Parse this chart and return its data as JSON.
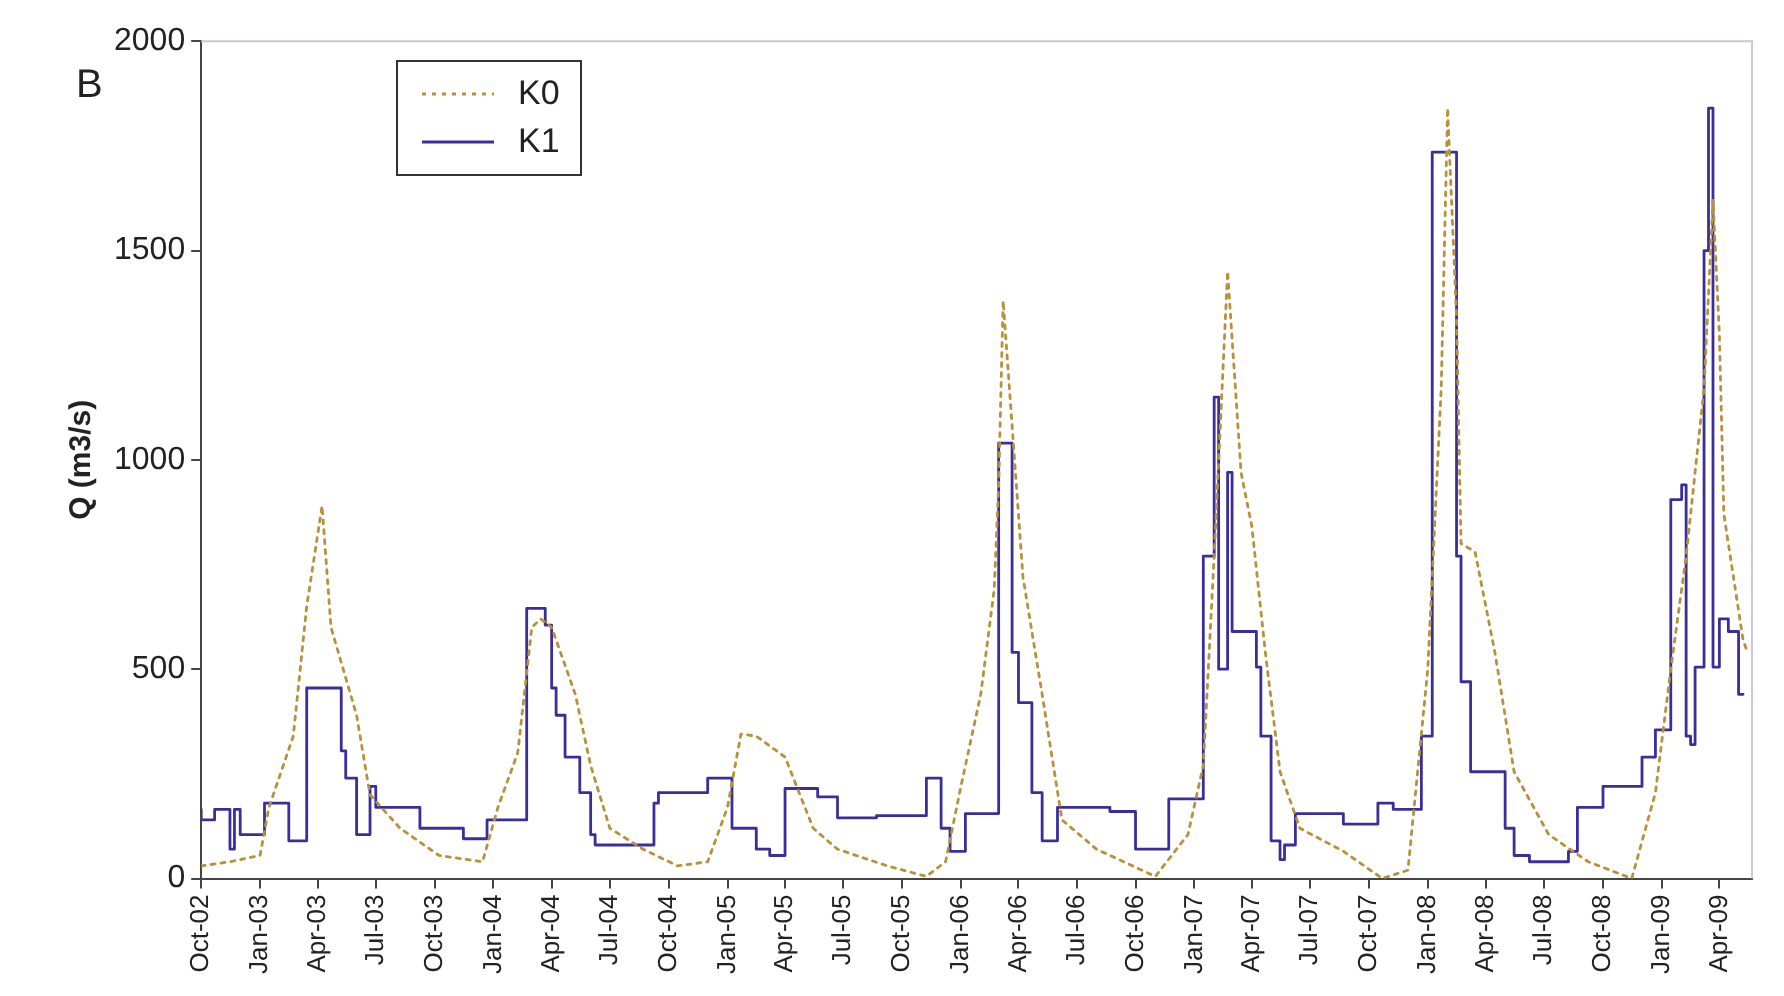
{
  "chart_data": {
    "type": "line",
    "ylabel": "Q (m3/s)",
    "annotations": [
      "B"
    ],
    "legend": "top left",
    "grid": false,
    "marker": "none",
    "xlim": [
      "2002-10-01",
      "2009-05-22"
    ],
    "xticks": [
      {
        "value": "2002-10-01",
        "label": "Oct-02"
      },
      {
        "value": "2003-01-01",
        "label": "Jan-03"
      },
      {
        "value": "2003-04-01",
        "label": "Apr-03"
      },
      {
        "value": "2003-07-01",
        "label": "Jul-03"
      },
      {
        "value": "2003-10-01",
        "label": "Oct-03"
      },
      {
        "value": "2004-01-01",
        "label": "Jan-04"
      },
      {
        "value": "2004-04-01",
        "label": "Apr-04"
      },
      {
        "value": "2004-07-01",
        "label": "Jul-04"
      },
      {
        "value": "2004-10-01",
        "label": "Oct-04"
      },
      {
        "value": "2005-01-01",
        "label": "Jan-05"
      },
      {
        "value": "2005-04-01",
        "label": "Apr-05"
      },
      {
        "value": "2005-07-01",
        "label": "Jul-05"
      },
      {
        "value": "2005-10-01",
        "label": "Oct-05"
      },
      {
        "value": "2006-01-01",
        "label": "Jan-06"
      },
      {
        "value": "2006-04-01",
        "label": "Apr-06"
      },
      {
        "value": "2006-07-01",
        "label": "Jul-06"
      },
      {
        "value": "2006-10-01",
        "label": "Oct-06"
      },
      {
        "value": "2007-01-01",
        "label": "Jan-07"
      },
      {
        "value": "2007-04-01",
        "label": "Apr-07"
      },
      {
        "value": "2007-07-01",
        "label": "Jul-07"
      },
      {
        "value": "2007-10-01",
        "label": "Oct-07"
      },
      {
        "value": "2008-01-01",
        "label": "Jan-08"
      },
      {
        "value": "2008-04-01",
        "label": "Apr-08"
      },
      {
        "value": "2008-07-01",
        "label": "Jul-08"
      },
      {
        "value": "2008-10-01",
        "label": "Oct-08"
      },
      {
        "value": "2009-01-01",
        "label": "Jan-09"
      },
      {
        "value": "2009-04-01",
        "label": "Apr-09"
      }
    ],
    "ylim": [
      0,
      2000
    ],
    "yticks": [
      0,
      500,
      1000,
      1500,
      2000
    ],
    "series": [
      {
        "name": "K0",
        "type": "line",
        "line_style": "dotted",
        "color": "#b8913a",
        "x": [
          "2002-10-01",
          "2002-11-15",
          "2003-01-01",
          "2003-01-15",
          "2003-02-22",
          "2003-03-15",
          "2003-04-08",
          "2003-04-22",
          "2003-06-01",
          "2003-06-22",
          "2003-08-08",
          "2003-10-08",
          "2003-12-15",
          "2004-01-08",
          "2004-02-08",
          "2004-03-01",
          "2004-03-15",
          "2004-04-01",
          "2004-05-08",
          "2004-06-01",
          "2004-07-01",
          "2004-08-22",
          "2004-10-15",
          "2004-12-01",
          "2005-01-01",
          "2005-01-22",
          "2005-02-15",
          "2005-04-01",
          "2005-05-15",
          "2005-06-22",
          "2005-09-08",
          "2005-11-08",
          "2005-12-08",
          "2006-01-01",
          "2006-02-01",
          "2006-02-22",
          "2006-03-01",
          "2006-03-08",
          "2006-04-08",
          "2006-05-08",
          "2006-06-08",
          "2006-08-01",
          "2006-11-01",
          "2006-12-22",
          "2007-01-15",
          "2007-02-01",
          "2007-02-22",
          "2007-03-15",
          "2007-04-01",
          "2007-04-22",
          "2007-05-15",
          "2007-06-15",
          "2007-08-22",
          "2007-10-22",
          "2007-12-01",
          "2008-01-01",
          "2008-01-22",
          "2008-02-01",
          "2008-02-15",
          "2008-02-22",
          "2008-03-15",
          "2008-04-15",
          "2008-05-15",
          "2008-07-08",
          "2008-09-08",
          "2008-11-15",
          "2008-12-22",
          "2009-01-15",
          "2009-02-08",
          "2009-03-08",
          "2009-03-22",
          "2009-04-01",
          "2009-04-08",
          "2009-05-08",
          "2009-05-15"
        ],
        "values": [
          30,
          40,
          55,
          170,
          340,
          650,
          890,
          600,
          390,
          200,
          120,
          55,
          40,
          170,
          300,
          600,
          620,
          600,
          440,
          270,
          120,
          70,
          30,
          40,
          170,
          345,
          340,
          290,
          120,
          70,
          30,
          5,
          40,
          220,
          440,
          690,
          940,
          1380,
          720,
          440,
          140,
          70,
          5,
          105,
          270,
          770,
          1450,
          970,
          840,
          540,
          255,
          120,
          65,
          0,
          20,
          500,
          1170,
          1840,
          1340,
          800,
          780,
          540,
          255,
          105,
          40,
          0,
          205,
          500,
          770,
          1170,
          1620,
          1300,
          870,
          570,
          540
        ]
      },
      {
        "name": "K1",
        "type": "step",
        "line_style": "solid",
        "color": "#3a2f9a",
        "x": [
          "2002-10-01",
          "2002-10-22",
          "2002-11-15",
          "2002-11-22",
          "2002-12-01",
          "2003-01-08",
          "2003-02-15",
          "2003-03-15",
          "2003-05-08",
          "2003-05-15",
          "2003-06-01",
          "2003-06-22",
          "2003-07-01",
          "2003-09-08",
          "2003-11-15",
          "2003-12-22",
          "2004-02-22",
          "2004-03-22",
          "2004-04-01",
          "2004-04-08",
          "2004-04-22",
          "2004-05-15",
          "2004-06-01",
          "2004-06-08",
          "2004-09-08",
          "2004-09-15",
          "2004-12-01",
          "2005-01-08",
          "2005-02-15",
          "2005-03-08",
          "2005-04-01",
          "2005-05-22",
          "2005-06-22",
          "2005-08-22",
          "2005-11-08",
          "2005-12-01",
          "2005-12-15",
          "2006-01-08",
          "2006-03-01",
          "2006-03-22",
          "2006-04-01",
          "2006-04-22",
          "2006-05-08",
          "2006-06-01",
          "2006-08-22",
          "2006-10-01",
          "2006-11-22",
          "2007-01-15",
          "2007-02-01",
          "2007-02-08",
          "2007-02-22",
          "2007-03-01",
          "2007-04-08",
          "2007-04-15",
          "2007-05-01",
          "2007-05-15",
          "2007-05-22",
          "2007-06-08",
          "2007-08-22",
          "2007-10-15",
          "2007-11-08",
          "2007-12-22",
          "2008-01-08",
          "2008-01-22",
          "2008-02-15",
          "2008-02-22",
          "2008-03-08",
          "2008-05-01",
          "2008-05-15",
          "2008-06-08",
          "2008-08-08",
          "2008-08-22",
          "2008-10-01",
          "2008-12-01",
          "2008-12-22",
          "2009-01-15",
          "2009-02-01",
          "2009-02-08",
          "2009-02-15",
          "2009-02-22",
          "2009-03-08",
          "2009-03-15",
          "2009-03-22",
          "2009-04-01",
          "2009-04-15",
          "2009-05-01",
          "2009-05-08"
        ],
        "values": [
          165,
          140,
          165,
          70,
          165,
          105,
          180,
          90,
          455,
          305,
          240,
          105,
          220,
          170,
          120,
          95,
          140,
          645,
          605,
          455,
          390,
          290,
          205,
          105,
          80,
          180,
          205,
          240,
          120,
          70,
          55,
          215,
          195,
          145,
          150,
          240,
          120,
          65,
          155,
          1040,
          540,
          420,
          205,
          90,
          170,
          160,
          70,
          190,
          770,
          1150,
          500,
          970,
          590,
          505,
          340,
          90,
          45,
          80,
          155,
          130,
          180,
          165,
          340,
          1735,
          1735,
          770,
          470,
          255,
          120,
          55,
          40,
          65,
          170,
          220,
          290,
          355,
          905,
          940,
          340,
          320,
          505,
          1500,
          1840,
          505,
          620,
          590,
          440
        ]
      }
    ]
  }
}
